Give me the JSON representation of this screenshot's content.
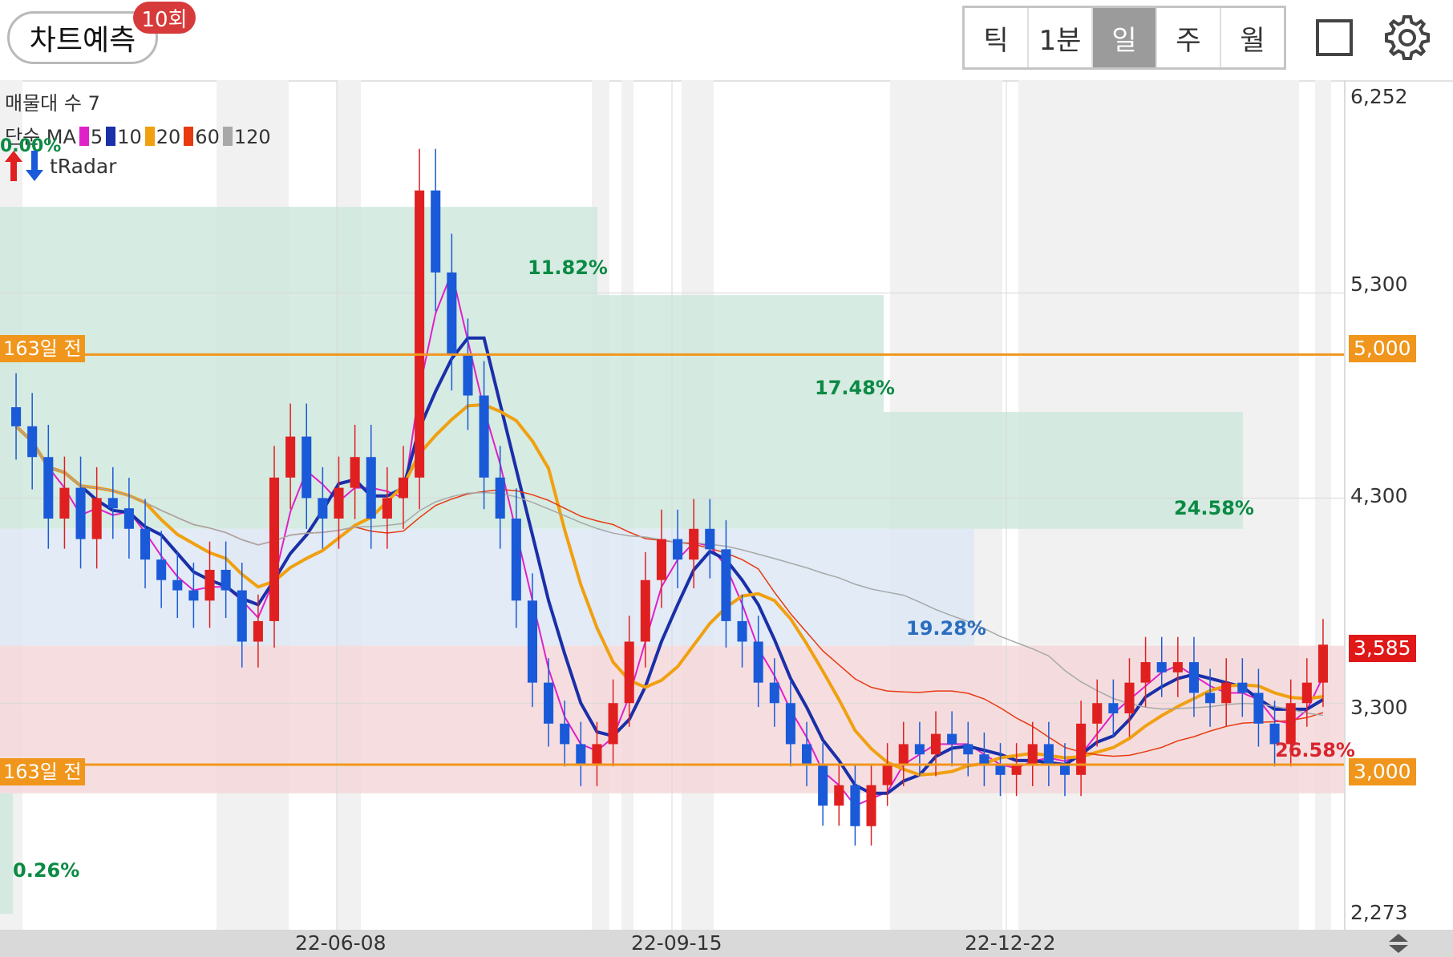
{
  "header": {
    "predict_label": "차트예측",
    "predict_count": "10회",
    "periods": [
      "틱",
      "1분",
      "일",
      "주",
      "월"
    ],
    "active_period": "일"
  },
  "legend": {
    "volume_profile": "매물대 수 7",
    "ma_prefix": "단순 MA",
    "ma_items": [
      {
        "period": "5",
        "color": "#e020c8"
      },
      {
        "period": "10",
        "color": "#1a2fa8"
      },
      {
        "period": "20",
        "color": "#f0a010"
      },
      {
        "period": "60",
        "color": "#e83a10"
      },
      {
        "period": "120",
        "color": "#a8a8a8"
      }
    ],
    "percent": "0.00%",
    "radar_label": "tRadar"
  },
  "price_axis": {
    "ticks": [
      "6,252",
      "5,300",
      "4,300",
      "3,300",
      "2,273"
    ],
    "current_price": "3,585",
    "lines": [
      {
        "tag": "163일 전",
        "price": "5,000"
      },
      {
        "tag": "163일 전",
        "price": "3,000"
      }
    ]
  },
  "date_axis": [
    "22-06-08",
    "22-09-15",
    "22-12-22"
  ],
  "zones": [
    {
      "label": "11.82%"
    },
    {
      "label": "17.48%"
    },
    {
      "label": "24.58%"
    },
    {
      "label": "19.28%"
    },
    {
      "label": "26.58%"
    },
    {
      "label": "0.26%"
    }
  ],
  "colors": {
    "up": "#e02020",
    "down": "#1a5ad8",
    "orange": "#f0961c",
    "green_zone": "#cfe8dd",
    "blue_zone": "#dde8f5",
    "red_zone": "#f5d8db"
  },
  "chart_data": {
    "type": "candlestick",
    "price_range": [
      2273,
      6252
    ],
    "closes": [
      4650,
      4500,
      4200,
      4350,
      4100,
      4300,
      4250,
      4150,
      4000,
      3900,
      3850,
      3800,
      3950,
      3850,
      3600,
      3700,
      4400,
      4600,
      4300,
      4200,
      4350,
      4500,
      4200,
      4300,
      4400,
      5800,
      5400,
      5000,
      4800,
      4400,
      4200,
      3800,
      3400,
      3200,
      3100,
      3000,
      3100,
      3300,
      3600,
      3900,
      4100,
      4000,
      4150,
      4050,
      3700,
      3600,
      3400,
      3300,
      3100,
      3000,
      2800,
      2900,
      2700,
      2900,
      3000,
      3100,
      3050,
      3150,
      3100,
      3050,
      3000,
      2950,
      3000,
      3100,
      3000,
      2950,
      3200,
      3300,
      3250,
      3400,
      3500,
      3450,
      3500,
      3350,
      3300,
      3400,
      3350,
      3200,
      3100,
      3300,
      3400,
      3585
    ]
  }
}
